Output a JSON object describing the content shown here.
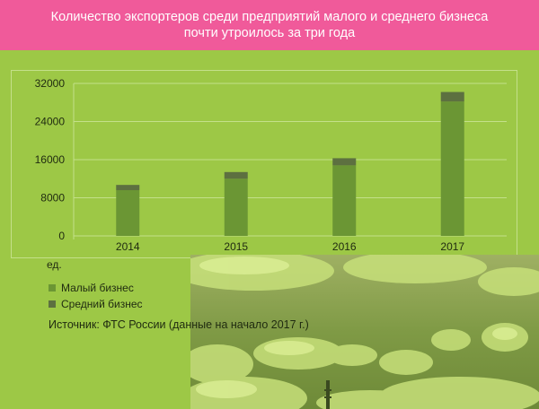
{
  "title": {
    "line1": "Количество экспортеров среди предприятий  малого и среднего бизнеса",
    "line2": "почти утроилось за три года"
  },
  "unit": "ед.",
  "source": "Источник: ФТС России (данные на начало 2017 г.)",
  "colors": {
    "header": "#f05a9a",
    "background": "#9dc846",
    "small_business": "#6b9634",
    "medium_business": "#5d7040",
    "grid": "#c4e08a"
  },
  "chart_data": {
    "type": "bar",
    "stacked": true,
    "categories": [
      "2014",
      "2015",
      "2016",
      "2017"
    ],
    "series": [
      {
        "name": "Малый бизнес",
        "values": [
          9600,
          12000,
          14800,
          28200
        ]
      },
      {
        "name": "Средний бизнес",
        "values": [
          1100,
          1400,
          1500,
          2000
        ]
      }
    ],
    "yticks": [
      "0",
      "8000",
      "16000",
      "24000",
      "32000"
    ],
    "ylim": [
      0,
      32000
    ],
    "grid": true,
    "legend": "bottom-left"
  }
}
